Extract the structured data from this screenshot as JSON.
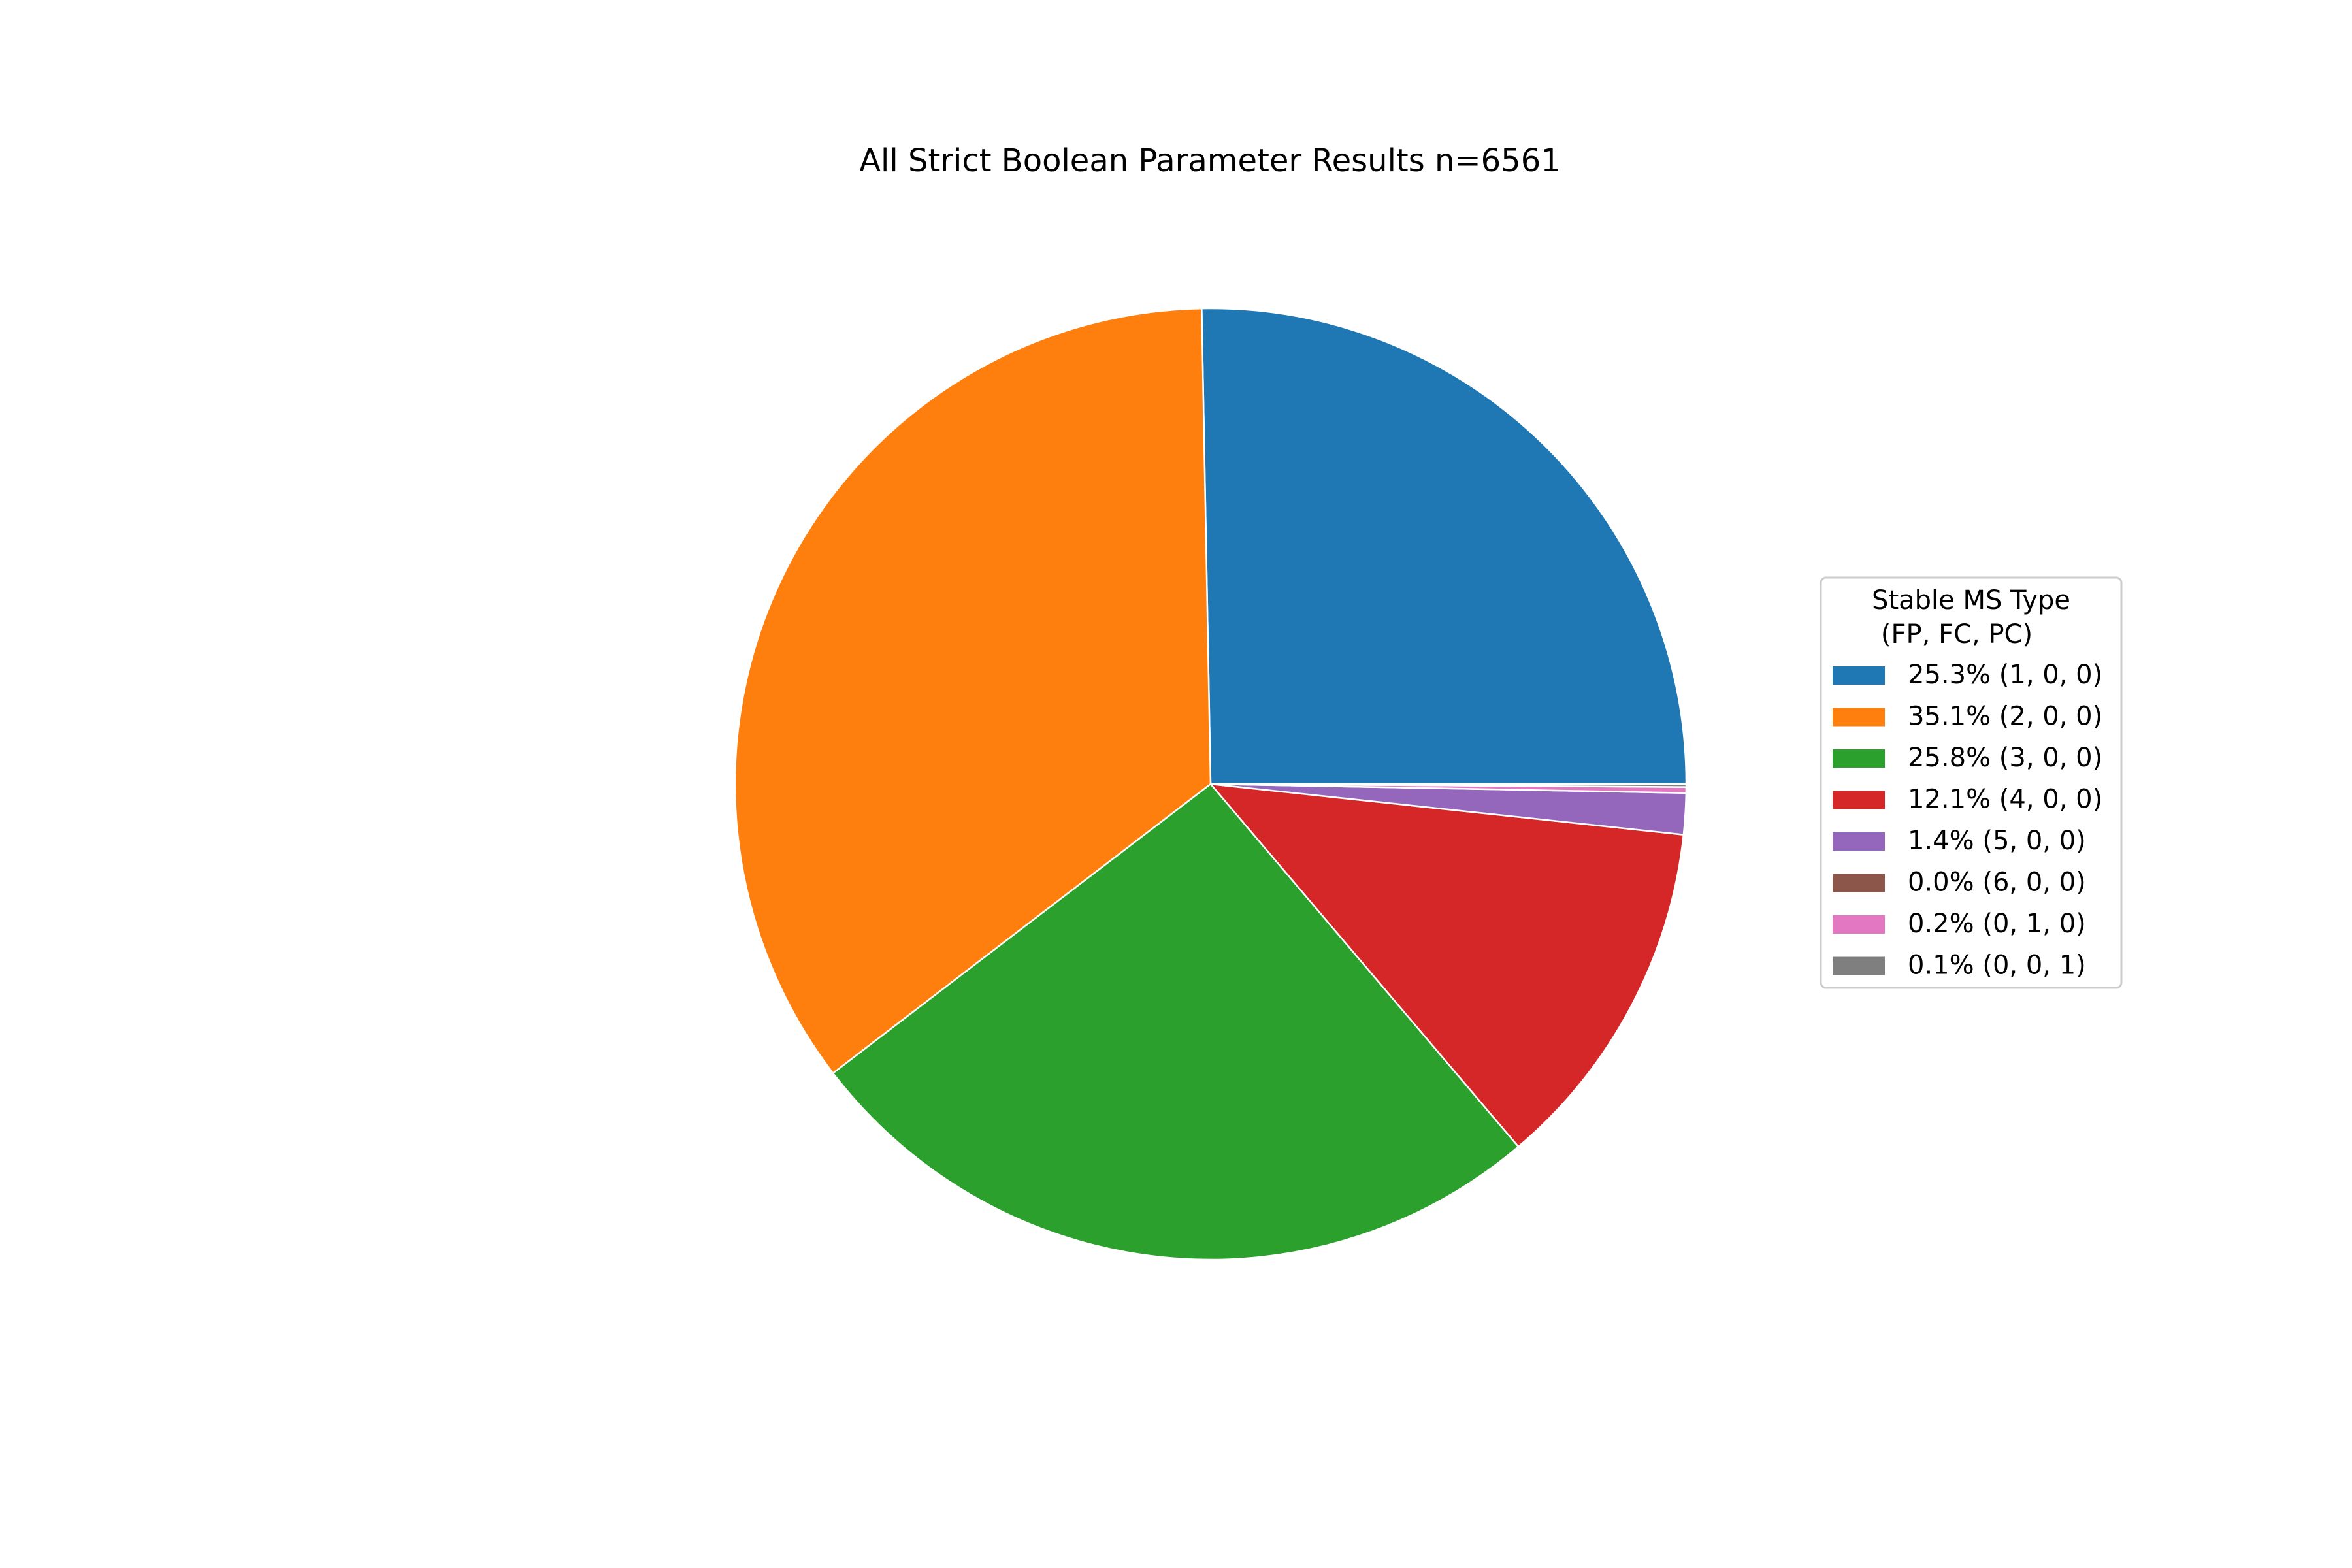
{
  "chart_data": {
    "type": "pie",
    "title": "All Strict Boolean Parameter Results n=6561",
    "legend": {
      "title_lines": [
        "Stable MS Type",
        "(FP, FC, PC)"
      ],
      "placement": "center-right"
    },
    "slices": [
      {
        "label": "(1, 0, 0)",
        "percent": 25.3,
        "percent_label": "25.3%",
        "color": "#1f77b4"
      },
      {
        "label": "(2, 0, 0)",
        "percent": 35.1,
        "percent_label": "35.1%",
        "color": "#ff7f0e"
      },
      {
        "label": "(3, 0, 0)",
        "percent": 25.8,
        "percent_label": "25.8%",
        "color": "#2ca02c"
      },
      {
        "label": "(4, 0, 0)",
        "percent": 12.1,
        "percent_label": "12.1%",
        "color": "#d62728"
      },
      {
        "label": "(5, 0, 0)",
        "percent": 1.4,
        "percent_label": "1.4%",
        "color": "#9467bd"
      },
      {
        "label": "(6, 0, 0)",
        "percent": 0.0,
        "percent_label": "0.0%",
        "color": "#8c564b"
      },
      {
        "label": "(0, 1, 0)",
        "percent": 0.2,
        "percent_label": "0.2%",
        "color": "#e377c2"
      },
      {
        "label": "(0, 0, 1)",
        "percent": 0.1,
        "percent_label": "0.1%",
        "color": "#7f7f7f"
      }
    ],
    "start_angle_deg": 0,
    "direction": "counterclockwise"
  }
}
